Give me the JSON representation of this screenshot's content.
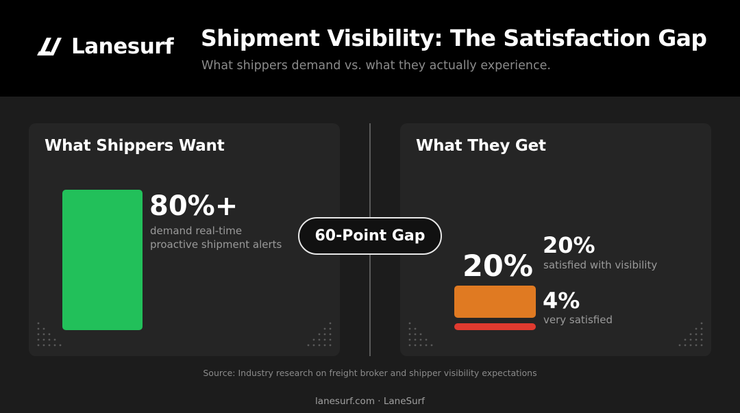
{
  "brand": {
    "name": "Lanesurf"
  },
  "header": {
    "title": "Shipment Visibility: The Satisfaction Gap",
    "subtitle": "What shippers demand vs. what they actually experience."
  },
  "left_panel": {
    "title": "What Shippers Want",
    "stat": "80%+",
    "desc_line1": "demand real-time",
    "desc_line2": "proactive shipment alerts"
  },
  "gap_label": "60-Point Gap",
  "right_panel": {
    "title": "What They Get",
    "bar_stat": "20%",
    "stat1": "20%",
    "stat1_desc": "satisfied with visibility",
    "stat2": "4%",
    "stat2_desc": "very satisfied"
  },
  "source": "Source: Industry research on freight broker and shipper visibility expectations",
  "footer": "lanesurf.com · LaneSurf",
  "colors": {
    "want": "#22c05a",
    "satisfied": "#e07a22",
    "very_satisfied": "#e03a2f",
    "background": "#1c1c1c",
    "panel": "#252525"
  },
  "chart_data": {
    "type": "bar",
    "title": "Shipment Visibility: The Satisfaction Gap",
    "categories": [
      "demand real-time proactive shipment alerts",
      "satisfied with visibility",
      "very satisfied"
    ],
    "values": [
      80,
      20,
      4
    ],
    "unit": "%",
    "annotation": "60-Point Gap"
  }
}
